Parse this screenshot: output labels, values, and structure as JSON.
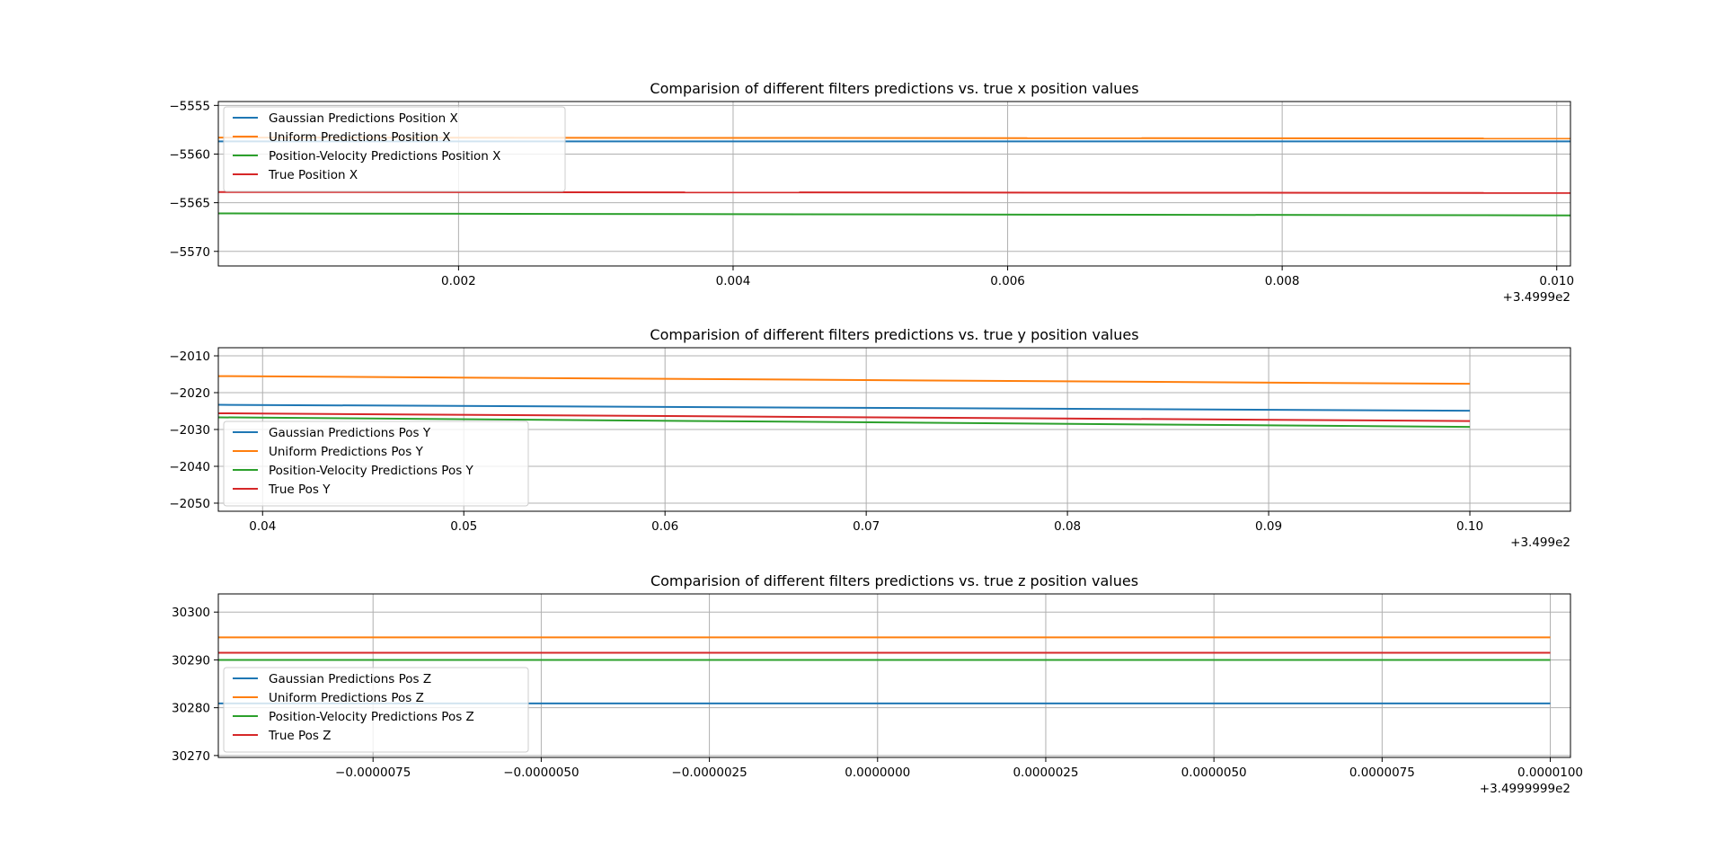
{
  "chart_data": [
    {
      "type": "line",
      "title": "Comparision of different filters predictions vs. true x position values",
      "x_offset_label": "+3.4999e2",
      "xlim": [
        0.00025,
        0.0101
      ],
      "ylim": [
        -5571.5,
        -5554.6
      ],
      "x_ticks": [
        0.002,
        0.004,
        0.006,
        0.008,
        0.01
      ],
      "x_tick_labels": [
        "0.002",
        "0.004",
        "0.006",
        "0.008",
        "0.010"
      ],
      "y_ticks": [
        -5555,
        -5560,
        -5565,
        -5570
      ],
      "y_tick_labels": [
        "−5555",
        "−5560",
        "−5565",
        "−5570"
      ],
      "grid": true,
      "legend_position": "upper-left",
      "x": [
        0.00025,
        0.0101
      ],
      "series": [
        {
          "name": "Gaussian Predictions Position X",
          "color": "#1f77b4",
          "values": [
            -5558.7,
            -5558.7
          ]
        },
        {
          "name": "Uniform Predictions Position X",
          "color": "#ff7f0e",
          "values": [
            -5558.3,
            -5558.4
          ]
        },
        {
          "name": "Position-Velocity Predictions Position X",
          "color": "#2ca02c",
          "values": [
            -5566.1,
            -5566.3
          ]
        },
        {
          "name": "True Position X",
          "color": "#d62728",
          "values": [
            -5563.9,
            -5564.0
          ]
        }
      ]
    },
    {
      "type": "line",
      "title": "Comparision of different filters predictions vs. true y position values",
      "x_offset_label": "+3.499e2",
      "xlim": [
        0.0378,
        0.105
      ],
      "ylim": [
        -2052.2,
        -2007.8
      ],
      "x_ticks": [
        0.04,
        0.05,
        0.06,
        0.07,
        0.08,
        0.09,
        0.1
      ],
      "x_tick_labels": [
        "0.04",
        "0.05",
        "0.06",
        "0.07",
        "0.08",
        "0.09",
        "0.10"
      ],
      "y_ticks": [
        -2010,
        -2020,
        -2030,
        -2040,
        -2050
      ],
      "y_tick_labels": [
        "−2010",
        "−2020",
        "−2030",
        "−2040",
        "−2050"
      ],
      "grid": true,
      "legend_position": "lower-left",
      "x": [
        0.0378,
        0.1
      ],
      "series": [
        {
          "name": "Gaussian Predictions Pos Y",
          "color": "#1f77b4",
          "values": [
            -2023.3,
            -2024.9
          ]
        },
        {
          "name": "Uniform Predictions Pos Y",
          "color": "#ff7f0e",
          "values": [
            -2015.5,
            -2017.6
          ]
        },
        {
          "name": "Position-Velocity Predictions Pos Y",
          "color": "#2ca02c",
          "values": [
            -2026.7,
            -2029.3
          ]
        },
        {
          "name": "True Pos Y",
          "color": "#d62728",
          "values": [
            -2025.6,
            -2027.7
          ]
        }
      ]
    },
    {
      "type": "line",
      "title": "Comparision of different filters predictions vs. true z position values",
      "x_offset_label": "+3.4999999e2",
      "xlim": [
        -9.8e-06,
        1.03e-05
      ],
      "ylim": [
        30269.6,
        30303.8
      ],
      "x_ticks": [
        -7.5e-06,
        -5e-06,
        -2.5e-06,
        0,
        2.5e-06,
        5e-06,
        7.5e-06,
        1e-05
      ],
      "x_tick_labels": [
        "−0.0000075",
        "−0.0000050",
        "−0.0000025",
        "0.0000000",
        "0.0000025",
        "0.0000050",
        "0.0000075",
        "0.0000100"
      ],
      "y_ticks": [
        30300,
        30290,
        30280,
        30270
      ],
      "y_tick_labels": [
        "30300",
        "30290",
        "30280",
        "30270"
      ],
      "grid": true,
      "legend_position": "lower-left",
      "x": [
        -9.8e-06,
        1e-05
      ],
      "series": [
        {
          "name": "Gaussian Predictions Pos Z",
          "color": "#1f77b4",
          "values": [
            30280.9,
            30280.9
          ]
        },
        {
          "name": "Uniform Predictions Pos Z",
          "color": "#ff7f0e",
          "values": [
            30294.7,
            30294.7
          ]
        },
        {
          "name": "Position-Velocity Predictions Pos Z",
          "color": "#2ca02c",
          "values": [
            30290.0,
            30290.0
          ]
        },
        {
          "name": "True Pos Z",
          "color": "#d62728",
          "values": [
            30291.5,
            30291.5
          ]
        }
      ]
    }
  ]
}
